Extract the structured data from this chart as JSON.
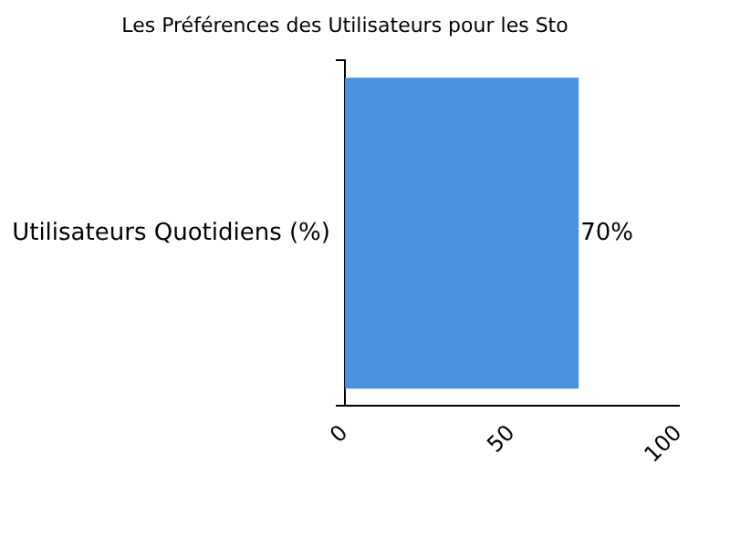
{
  "chart_data": {
    "type": "bar",
    "orientation": "horizontal",
    "title": "Les Préférences des Utilisateurs pour les Sto",
    "categories": [
      "Utilisateurs Quotidiens (%)"
    ],
    "values": [
      70
    ],
    "color": "#4a90e2",
    "value_labels": [
      "70%"
    ],
    "xlim": [
      0,
      100
    ],
    "xticks": [
      0,
      50,
      100
    ],
    "grid": false,
    "legend": false
  }
}
